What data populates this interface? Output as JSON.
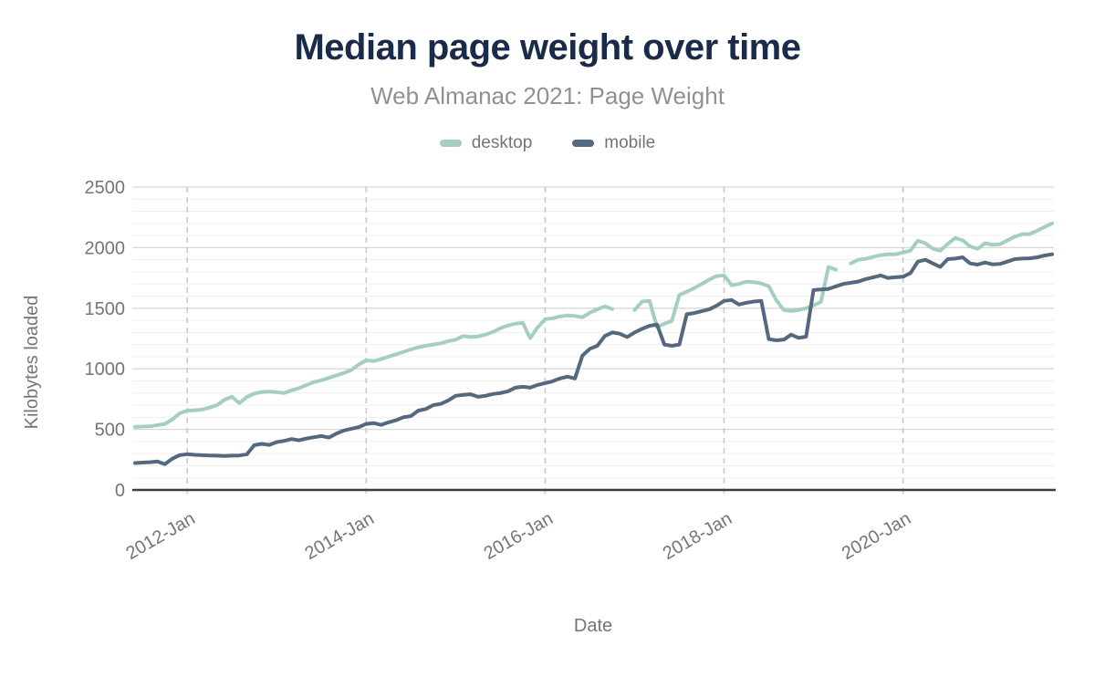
{
  "header": {
    "title": "Median page weight over time",
    "subtitle": "Web Almanac 2021: Page Weight"
  },
  "axis_titles": {
    "x": "Date",
    "y": "Kilobytes loaded"
  },
  "style": {
    "title_color": "#1a2b49",
    "subtitle_color": "#8e9196",
    "label_color": "#757575",
    "axis_line_color": "#3a3f45",
    "grid_minor_color": "#efefef",
    "grid_major_color": "#d8d8d8",
    "grid_vertical_dash_color": "#c9c9c9",
    "desktop_color": "#a4cfbe",
    "mobile_color": "#54687e"
  },
  "chart_data": {
    "type": "line",
    "title": "Median page weight over time",
    "subtitle": "Web Almanac 2021: Page Weight",
    "xlabel": "Date",
    "ylabel": "Kilobytes loaded",
    "ylim": [
      0,
      2500
    ],
    "y_ticks": [
      0,
      500,
      1000,
      1500,
      2000,
      2500
    ],
    "y_minor_step": 100,
    "grid": {
      "horizontal": true,
      "vertical_dashed_at_years": true
    },
    "legend_position": "top-center",
    "x_ticks": [
      {
        "month": "2012-01",
        "label": "2012-Jan"
      },
      {
        "month": "2014-01",
        "label": "2014-Jan"
      },
      {
        "month": "2016-01",
        "label": "2016-Jan"
      },
      {
        "month": "2018-01",
        "label": "2018-Jan"
      },
      {
        "month": "2020-01",
        "label": "2020-Jan"
      }
    ],
    "x": [
      "2011-06",
      "2011-07",
      "2011-08",
      "2011-09",
      "2011-10",
      "2011-11",
      "2011-12",
      "2012-01",
      "2012-02",
      "2012-03",
      "2012-04",
      "2012-05",
      "2012-06",
      "2012-07",
      "2012-08",
      "2012-09",
      "2012-10",
      "2012-11",
      "2012-12",
      "2013-01",
      "2013-02",
      "2013-03",
      "2013-04",
      "2013-05",
      "2013-06",
      "2013-07",
      "2013-08",
      "2013-09",
      "2013-10",
      "2013-11",
      "2013-12",
      "2014-01",
      "2014-02",
      "2014-03",
      "2014-04",
      "2014-05",
      "2014-06",
      "2014-07",
      "2014-08",
      "2014-09",
      "2014-10",
      "2014-11",
      "2014-12",
      "2015-01",
      "2015-02",
      "2015-03",
      "2015-04",
      "2015-05",
      "2015-06",
      "2015-07",
      "2015-08",
      "2015-09",
      "2015-10",
      "2015-11",
      "2015-12",
      "2016-01",
      "2016-02",
      "2016-03",
      "2016-04",
      "2016-05",
      "2016-06",
      "2016-07",
      "2016-08",
      "2016-09",
      "2016-10",
      "2016-11",
      "2016-12",
      "2017-01",
      "2017-02",
      "2017-03",
      "2017-04",
      "2017-05",
      "2017-06",
      "2017-07",
      "2017-08",
      "2017-09",
      "2017-10",
      "2017-11",
      "2017-12",
      "2018-01",
      "2018-02",
      "2018-03",
      "2018-04",
      "2018-05",
      "2018-06",
      "2018-07",
      "2018-08",
      "2018-09",
      "2018-10",
      "2018-11",
      "2018-12",
      "2019-01",
      "2019-02",
      "2019-03",
      "2019-04",
      "2019-05",
      "2019-06",
      "2019-07",
      "2019-08",
      "2019-09",
      "2019-10",
      "2019-11",
      "2019-12",
      "2020-01",
      "2020-02",
      "2020-03",
      "2020-04",
      "2020-05",
      "2020-06",
      "2020-07",
      "2020-08",
      "2020-09",
      "2020-10",
      "2020-11",
      "2020-12",
      "2021-01",
      "2021-02",
      "2021-03",
      "2021-04",
      "2021-05",
      "2021-06",
      "2021-07",
      "2021-08",
      "2021-09"
    ],
    "series": [
      {
        "name": "desktop",
        "color": "#a4cfbe",
        "values": [
          520,
          523,
          525,
          535,
          545,
          582,
          633,
          655,
          658,
          663,
          680,
          700,
          745,
          769,
          716,
          768,
          795,
          808,
          812,
          807,
          800,
          822,
          840,
          866,
          890,
          905,
          925,
          945,
          965,
          990,
          1035,
          1070,
          1063,
          1080,
          1100,
          1120,
          1140,
          1160,
          1178,
          1190,
          1200,
          1210,
          1228,
          1240,
          1270,
          1262,
          1267,
          1282,
          1304,
          1334,
          1357,
          1372,
          1380,
          1252,
          1342,
          1410,
          1417,
          1432,
          1440,
          1436,
          1425,
          1463,
          1490,
          1515,
          1493,
          null,
          null,
          1485,
          1555,
          1560,
          1345,
          1372,
          1395,
          1610,
          1636,
          1666,
          1700,
          1735,
          1765,
          1772,
          1690,
          1700,
          1720,
          1715,
          1705,
          1681,
          1568,
          1485,
          1478,
          1485,
          1500,
          1523,
          1553,
          1840,
          1818,
          null,
          1870,
          1900,
          1908,
          1923,
          1938,
          1945,
          1945,
          1960,
          1975,
          2058,
          2036,
          1990,
          1975,
          2030,
          2080,
          2060,
          2010,
          1990,
          2036,
          2025,
          2028,
          2060,
          2090,
          2110,
          2112,
          2140,
          2170,
          2200
        ]
      },
      {
        "name": "mobile",
        "color": "#54687e",
        "values": [
          222,
          226,
          229,
          235,
          213,
          258,
          288,
          295,
          290,
          287,
          285,
          283,
          280,
          283,
          285,
          295,
          370,
          380,
          372,
          395,
          405,
          420,
          410,
          425,
          435,
          445,
          432,
          465,
          490,
          505,
          518,
          545,
          552,
          537,
          558,
          575,
          600,
          610,
          655,
          668,
          700,
          710,
          739,
          777,
          785,
          790,
          769,
          777,
          792,
          800,
          814,
          844,
          852,
          844,
          867,
          882,
          897,
          920,
          935,
          920,
          1108,
          1165,
          1190,
          1270,
          1300,
          1290,
          1262,
          1300,
          1330,
          1355,
          1365,
          1200,
          1190,
          1200,
          1450,
          1460,
          1475,
          1490,
          1520,
          1560,
          1568,
          1530,
          1545,
          1555,
          1560,
          1245,
          1235,
          1240,
          1282,
          1255,
          1265,
          1650,
          1655,
          1660,
          1680,
          1700,
          1710,
          1720,
          1740,
          1755,
          1770,
          1750,
          1755,
          1760,
          1790,
          1885,
          1900,
          1870,
          1840,
          1905,
          1910,
          1920,
          1870,
          1860,
          1877,
          1862,
          1865,
          1885,
          1905,
          1910,
          1912,
          1920,
          1935,
          1945
        ]
      }
    ]
  }
}
